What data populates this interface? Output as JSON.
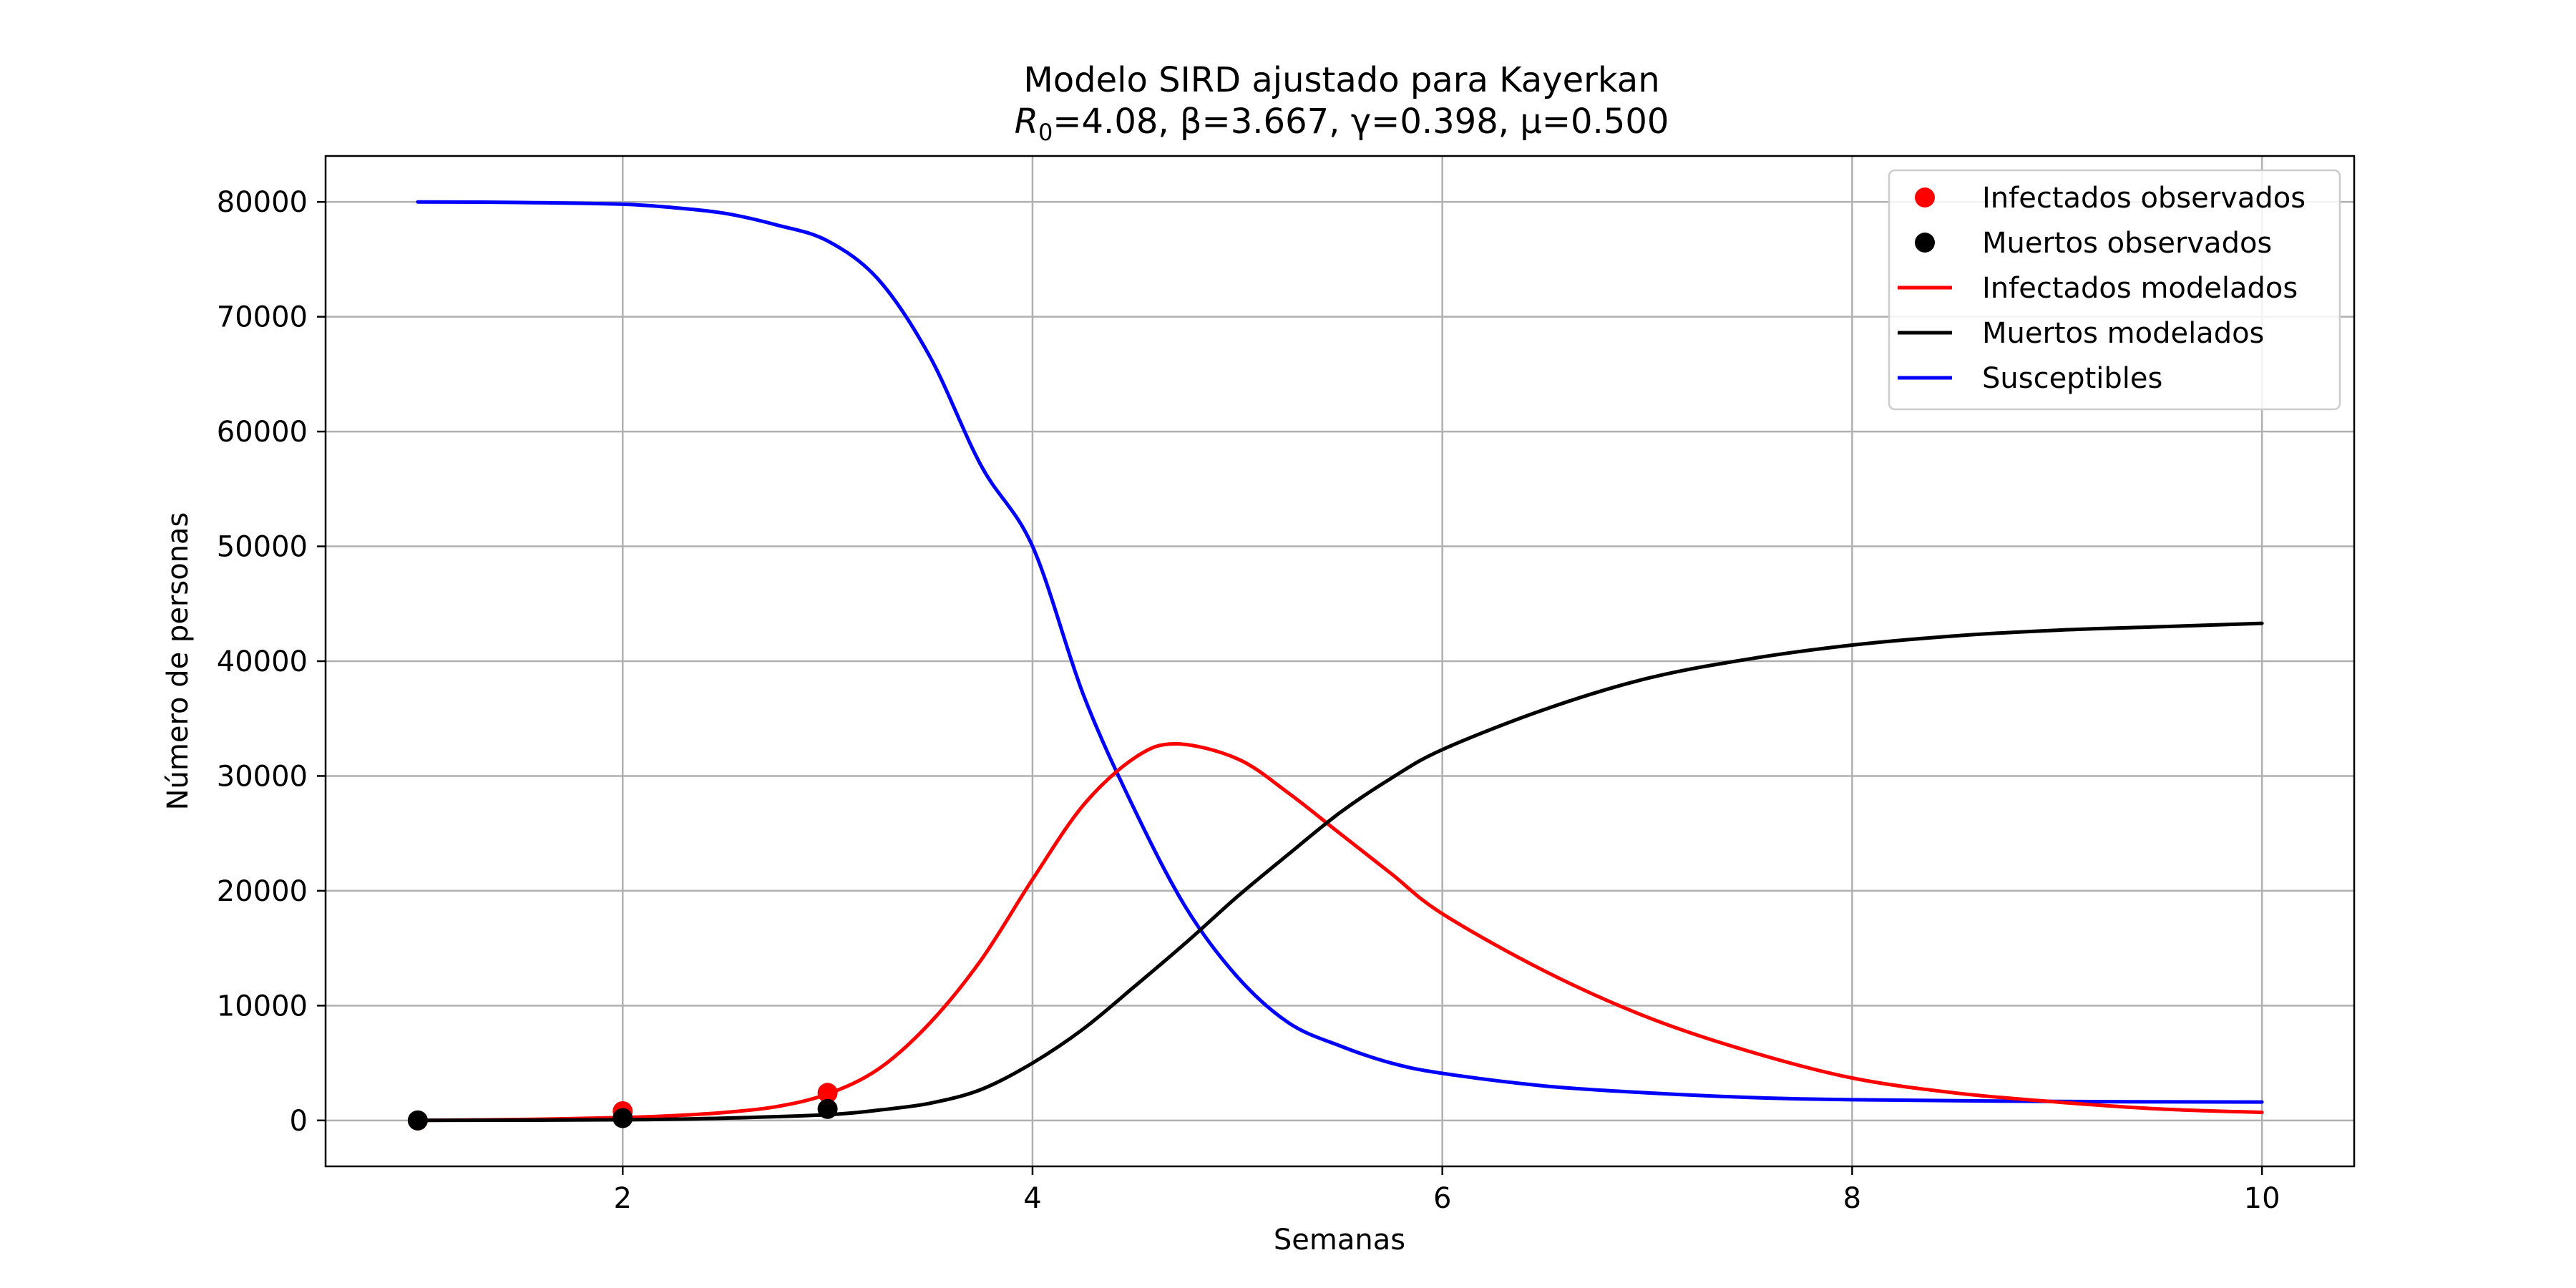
{
  "chart_data": {
    "type": "line",
    "title": "Modelo SIRD ajustado para Kayerkan",
    "subtitle": {
      "r0_symbol": "R",
      "r0_subscript": "0",
      "text": "=4.08, β=3.667, γ=0.398, μ=0.500"
    },
    "xlabel": "Semanas",
    "ylabel": "Número de personas",
    "xlim": [
      0.55,
      10.45
    ],
    "ylim": [
      -4000,
      84000
    ],
    "xticks": [
      2,
      4,
      6,
      8,
      10
    ],
    "yticks": [
      0,
      10000,
      20000,
      30000,
      40000,
      50000,
      60000,
      70000,
      80000
    ],
    "grid": true,
    "legend_position": "top-right",
    "legend": [
      {
        "label": "Infectados observados",
        "kind": "marker",
        "color": "#ff0000"
      },
      {
        "label": "Muertos observados",
        "kind": "marker",
        "color": "#000000"
      },
      {
        "label": "Infectados modelados",
        "kind": "line",
        "color": "#ff0000"
      },
      {
        "label": "Muertos modelados",
        "kind": "line",
        "color": "#000000"
      },
      {
        "label": "Susceptibles",
        "kind": "line",
        "color": "#0000ff"
      }
    ],
    "scatter_series": [
      {
        "label": "Infectados observados",
        "color": "#ff0000",
        "points": [
          [
            1,
            0
          ],
          [
            2,
            800
          ],
          [
            3,
            2400
          ]
        ]
      },
      {
        "label": "Muertos observados",
        "color": "#000000",
        "points": [
          [
            1,
            0
          ],
          [
            2,
            200
          ],
          [
            3,
            1000
          ]
        ]
      }
    ],
    "line_series": [
      {
        "label": "Susceptibles",
        "color": "#0000ff",
        "x": [
          1,
          1.5,
          2,
          2.25,
          2.5,
          2.75,
          3,
          3.25,
          3.5,
          3.75,
          4,
          4.25,
          4.5,
          4.75,
          5,
          5.25,
          5.5,
          5.75,
          6,
          6.5,
          7,
          7.5,
          8,
          9,
          10
        ],
        "y": [
          80000,
          79950,
          79800,
          79500,
          79000,
          78000,
          76600,
          73200,
          66500,
          57000,
          50000,
          37000,
          27000,
          18500,
          12500,
          8500,
          6500,
          5000,
          4100,
          3000,
          2400,
          2000,
          1800,
          1650,
          1600
        ]
      },
      {
        "label": "Infectados modelados",
        "color": "#ff0000",
        "x": [
          1,
          1.5,
          2,
          2.25,
          2.5,
          2.75,
          3,
          3.25,
          3.5,
          3.75,
          4,
          4.25,
          4.5,
          4.7,
          5,
          5.25,
          5.5,
          5.75,
          6,
          6.5,
          7,
          7.5,
          8,
          8.5,
          9,
          9.5,
          10
        ],
        "y": [
          0,
          80,
          250,
          420,
          700,
          1200,
          2300,
          4500,
          8500,
          14000,
          21000,
          27500,
          31600,
          32800,
          31500,
          28500,
          25000,
          21500,
          18000,
          13000,
          9000,
          6000,
          3700,
          2400,
          1600,
          1000,
          700
        ]
      },
      {
        "label": "Muertos modelados",
        "color": "#000000",
        "x": [
          1,
          2,
          2.5,
          3,
          3.25,
          3.5,
          3.75,
          4,
          4.25,
          4.5,
          4.75,
          5,
          5.25,
          5.5,
          5.75,
          6,
          6.5,
          7,
          7.5,
          8,
          8.5,
          9,
          9.5,
          10
        ],
        "y": [
          0,
          60,
          200,
          500,
          900,
          1500,
          2700,
          5000,
          8000,
          11700,
          15500,
          19500,
          23200,
          26800,
          29800,
          32300,
          35800,
          38500,
          40200,
          41400,
          42200,
          42700,
          43000,
          43300
        ]
      }
    ]
  }
}
